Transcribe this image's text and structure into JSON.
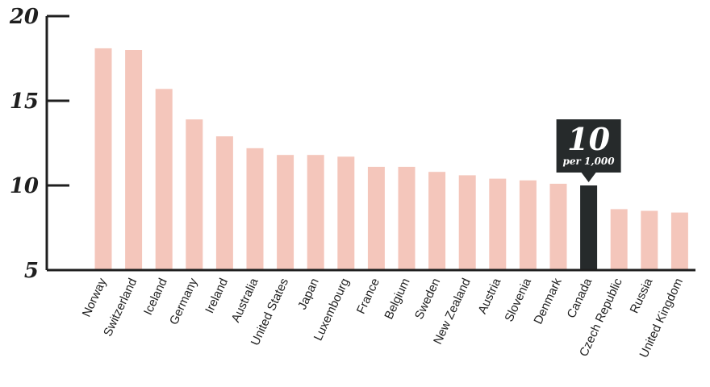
{
  "chart_data": {
    "type": "bar",
    "title": "",
    "xlabel": "",
    "ylabel": "",
    "ylim": [
      5,
      20
    ],
    "yticks": [
      5,
      10,
      15,
      20
    ],
    "grid": false,
    "categories": [
      "Norway",
      "Switzerland",
      "Iceland",
      "Germany",
      "Ireland",
      "Australia",
      "United States",
      "Japan",
      "Luxembourg",
      "France",
      "Belgium",
      "Sweden",
      "New Zealand",
      "Austria",
      "Slovenia",
      "Denmark",
      "Canada",
      "Czech Republic",
      "Russia",
      "United Kingdom"
    ],
    "values": [
      18.1,
      18.0,
      15.7,
      13.9,
      12.9,
      12.2,
      11.8,
      11.8,
      11.7,
      11.1,
      11.1,
      10.8,
      10.6,
      10.4,
      10.3,
      10.1,
      10.0,
      8.6,
      8.5,
      8.4
    ],
    "highlight": {
      "category": "Canada",
      "value_label": "10",
      "unit_label": "per 1,000"
    },
    "colors": {
      "bar": "#f4c6bb",
      "highlight": "#262a2b",
      "axis": "#1f1f1f"
    }
  }
}
